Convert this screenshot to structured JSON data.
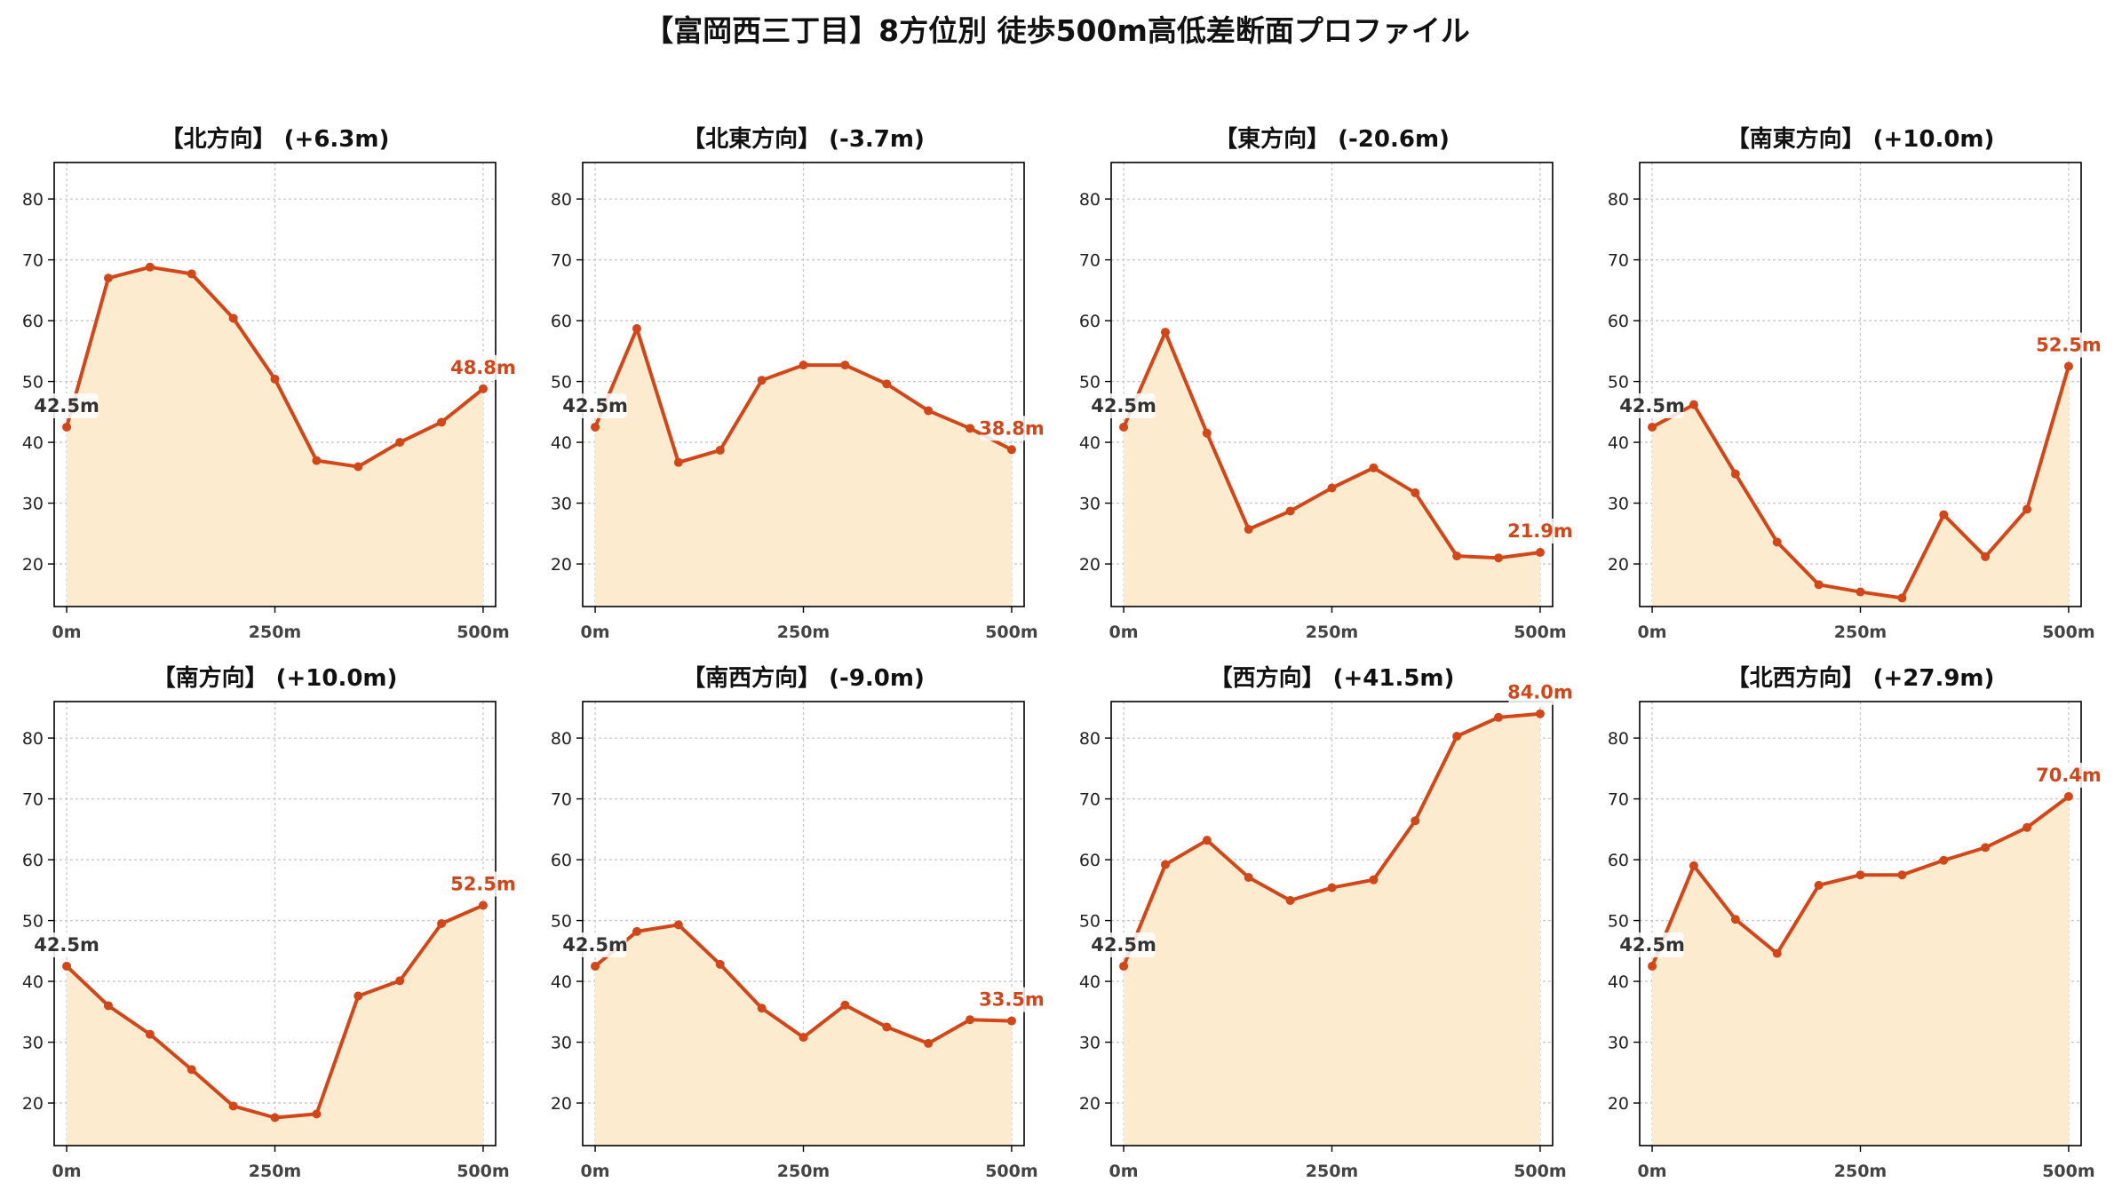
{
  "title": "【富岡西三丁目】8方位別 徒歩500m高低差断面プロファイル",
  "colors": {
    "line": "#d1471a",
    "fill": "#fdebd0",
    "end_label": "#d1471a",
    "start_label": "#333333",
    "grid": "#c8c8c8",
    "axis": "#000000"
  },
  "chart_data": [
    {
      "type": "area",
      "title": "【北方向】 (+6.3m)",
      "x": [
        0,
        50,
        100,
        150,
        200,
        250,
        300,
        350,
        400,
        450,
        500
      ],
      "values": [
        42.5,
        67.0,
        68.8,
        67.7,
        60.4,
        50.4,
        37.0,
        36.0,
        40.0,
        43.3,
        48.8
      ],
      "start_label": "42.5m",
      "end_label": "48.8m",
      "xticks": [
        0,
        250,
        500
      ],
      "xtick_labels": [
        "0m",
        "250m",
        "500m"
      ],
      "yticks": [
        20,
        30,
        40,
        50,
        60,
        70,
        80
      ],
      "ytick_labels": [
        "20",
        "30",
        "40",
        "50",
        "60",
        "70",
        "80"
      ],
      "xlim": [
        -15,
        515
      ],
      "ylim": [
        13,
        86
      ],
      "grid": true
    },
    {
      "type": "area",
      "title": "【北東方向】 (-3.7m)",
      "x": [
        0,
        50,
        100,
        150,
        200,
        250,
        300,
        350,
        400,
        450,
        500
      ],
      "values": [
        42.5,
        58.7,
        36.7,
        38.7,
        50.2,
        52.7,
        52.7,
        49.6,
        45.2,
        42.3,
        38.8
      ],
      "start_label": "42.5m",
      "end_label": "38.8m",
      "xticks": [
        0,
        250,
        500
      ],
      "xtick_labels": [
        "0m",
        "250m",
        "500m"
      ],
      "yticks": [
        20,
        30,
        40,
        50,
        60,
        70,
        80
      ],
      "ytick_labels": [
        "20",
        "30",
        "40",
        "50",
        "60",
        "70",
        "80"
      ],
      "xlim": [
        -15,
        515
      ],
      "ylim": [
        13,
        86
      ],
      "grid": true
    },
    {
      "type": "area",
      "title": "【東方向】 (-20.6m)",
      "x": [
        0,
        50,
        100,
        150,
        200,
        250,
        300,
        350,
        400,
        450,
        500
      ],
      "values": [
        42.5,
        58.1,
        41.5,
        25.7,
        28.7,
        32.5,
        35.8,
        31.7,
        21.3,
        21.0,
        21.9
      ],
      "start_label": "42.5m",
      "end_label": "21.9m",
      "xticks": [
        0,
        250,
        500
      ],
      "xtick_labels": [
        "0m",
        "250m",
        "500m"
      ],
      "yticks": [
        20,
        30,
        40,
        50,
        60,
        70,
        80
      ],
      "ytick_labels": [
        "20",
        "30",
        "40",
        "50",
        "60",
        "70",
        "80"
      ],
      "xlim": [
        -15,
        515
      ],
      "ylim": [
        13,
        86
      ],
      "grid": true
    },
    {
      "type": "area",
      "title": "【南東方向】 (+10.0m)",
      "x": [
        0,
        50,
        100,
        150,
        200,
        250,
        300,
        350,
        400,
        450,
        500
      ],
      "values": [
        42.5,
        46.2,
        34.8,
        23.6,
        16.6,
        15.4,
        14.4,
        28.1,
        21.2,
        29.0,
        52.5
      ],
      "start_label": "42.5m",
      "end_label": "52.5m",
      "xticks": [
        0,
        250,
        500
      ],
      "xtick_labels": [
        "0m",
        "250m",
        "500m"
      ],
      "yticks": [
        20,
        30,
        40,
        50,
        60,
        70,
        80
      ],
      "ytick_labels": [
        "20",
        "30",
        "40",
        "50",
        "60",
        "70",
        "80"
      ],
      "xlim": [
        -15,
        515
      ],
      "ylim": [
        13,
        86
      ],
      "grid": true
    },
    {
      "type": "area",
      "title": "【南方向】 (+10.0m)",
      "x": [
        0,
        50,
        100,
        150,
        200,
        250,
        300,
        350,
        400,
        450,
        500
      ],
      "values": [
        42.5,
        36.0,
        31.3,
        25.5,
        19.5,
        17.6,
        18.2,
        37.6,
        40.1,
        49.5,
        52.5
      ],
      "start_label": "42.5m",
      "end_label": "52.5m",
      "xticks": [
        0,
        250,
        500
      ],
      "xtick_labels": [
        "0m",
        "250m",
        "500m"
      ],
      "yticks": [
        20,
        30,
        40,
        50,
        60,
        70,
        80
      ],
      "ytick_labels": [
        "20",
        "30",
        "40",
        "50",
        "60",
        "70",
        "80"
      ],
      "xlim": [
        -15,
        515
      ],
      "ylim": [
        13,
        86
      ],
      "grid": true
    },
    {
      "type": "area",
      "title": "【南西方向】 (-9.0m)",
      "x": [
        0,
        50,
        100,
        150,
        200,
        250,
        300,
        350,
        400,
        450,
        500
      ],
      "values": [
        42.5,
        48.2,
        49.3,
        42.8,
        35.6,
        30.8,
        36.1,
        32.5,
        29.8,
        33.7,
        33.5
      ],
      "start_label": "42.5m",
      "end_label": "33.5m",
      "xticks": [
        0,
        250,
        500
      ],
      "xtick_labels": [
        "0m",
        "250m",
        "500m"
      ],
      "yticks": [
        20,
        30,
        40,
        50,
        60,
        70,
        80
      ],
      "ytick_labels": [
        "20",
        "30",
        "40",
        "50",
        "60",
        "70",
        "80"
      ],
      "xlim": [
        -15,
        515
      ],
      "ylim": [
        13,
        86
      ],
      "grid": true
    },
    {
      "type": "area",
      "title": "【西方向】 (+41.5m)",
      "x": [
        0,
        50,
        100,
        150,
        200,
        250,
        300,
        350,
        400,
        450,
        500
      ],
      "values": [
        42.5,
        59.2,
        63.2,
        57.1,
        53.3,
        55.4,
        56.7,
        66.4,
        80.3,
        83.4,
        84.0
      ],
      "start_label": "42.5m",
      "end_label": "84.0m",
      "xticks": [
        0,
        250,
        500
      ],
      "xtick_labels": [
        "0m",
        "250m",
        "500m"
      ],
      "yticks": [
        20,
        30,
        40,
        50,
        60,
        70,
        80
      ],
      "ytick_labels": [
        "20",
        "30",
        "40",
        "50",
        "60",
        "70",
        "80"
      ],
      "xlim": [
        -15,
        515
      ],
      "ylim": [
        13,
        86
      ],
      "grid": true
    },
    {
      "type": "area",
      "title": "【北西方向】 (+27.9m)",
      "x": [
        0,
        50,
        100,
        150,
        200,
        250,
        300,
        350,
        400,
        450,
        500
      ],
      "values": [
        42.5,
        59.0,
        50.2,
        44.6,
        55.8,
        57.5,
        57.5,
        59.9,
        62.0,
        65.3,
        70.4
      ],
      "start_label": "42.5m",
      "end_label": "70.4m",
      "xticks": [
        0,
        250,
        500
      ],
      "xtick_labels": [
        "0m",
        "250m",
        "500m"
      ],
      "yticks": [
        20,
        30,
        40,
        50,
        60,
        70,
        80
      ],
      "ytick_labels": [
        "20",
        "30",
        "40",
        "50",
        "60",
        "70",
        "80"
      ],
      "xlim": [
        -15,
        515
      ],
      "ylim": [
        13,
        86
      ],
      "grid": true
    }
  ]
}
